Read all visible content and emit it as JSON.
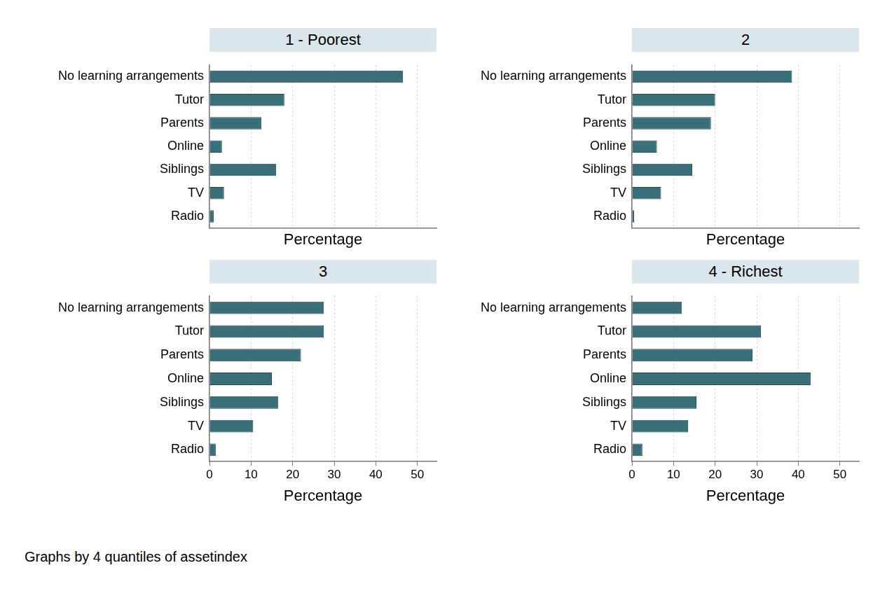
{
  "caption": "Graphs by 4 quantiles of assetindex",
  "chart_data": [
    {
      "type": "bar",
      "title": "1 - Poorest",
      "orientation": "horizontal",
      "categories": [
        "No learning arrangements",
        "Tutor",
        "Parents",
        "Online",
        "Siblings",
        "TV",
        "Radio"
      ],
      "values": [
        46.5,
        18,
        12.5,
        3,
        16,
        3.5,
        1
      ],
      "color": "#3a6e78",
      "x_label": "Percentage",
      "xlim": [
        0,
        54.6
      ],
      "xticks": [
        0,
        10,
        20,
        30,
        40,
        50
      ],
      "grid": true,
      "tick_labels": "y"
    },
    {
      "type": "bar",
      "title": "2",
      "orientation": "horizontal",
      "categories": [
        "No learning arrangements",
        "Tutor",
        "Parents",
        "Online",
        "Siblings",
        "TV",
        "Radio"
      ],
      "values": [
        38.5,
        20,
        19,
        6,
        14.5,
        7,
        0.5
      ],
      "color": "#3a6e78",
      "x_label": "Percentage",
      "xlim": [
        0,
        54.6
      ],
      "xticks": [
        0,
        10,
        20,
        30,
        40,
        50
      ],
      "grid": true,
      "tick_labels": "y"
    },
    {
      "type": "bar",
      "title": "3",
      "orientation": "horizontal",
      "categories": [
        "No learning arrangements",
        "Tutor",
        "Parents",
        "Online",
        "Siblings",
        "TV",
        "Radio"
      ],
      "values": [
        27.5,
        27.5,
        22,
        15,
        16.5,
        10.5,
        1.5
      ],
      "color": "#3a6e78",
      "x_label": "Percentage",
      "xlim": [
        0,
        54.6
      ],
      "xticks": [
        0,
        10,
        20,
        30,
        40,
        50
      ],
      "grid": true,
      "tick_labels": true
    },
    {
      "type": "bar",
      "title": "4 - Richest",
      "orientation": "horizontal",
      "categories": [
        "No learning arrangements",
        "Tutor",
        "Parents",
        "Online",
        "Siblings",
        "TV",
        "Radio"
      ],
      "values": [
        12,
        31,
        29,
        43,
        15.5,
        13.5,
        2.5
      ],
      "color": "#3a6e78",
      "x_label": "Percentage",
      "xlim": [
        0,
        54.6
      ],
      "xticks": [
        0,
        10,
        20,
        30,
        40,
        50
      ],
      "grid": true,
      "tick_labels": true
    }
  ]
}
